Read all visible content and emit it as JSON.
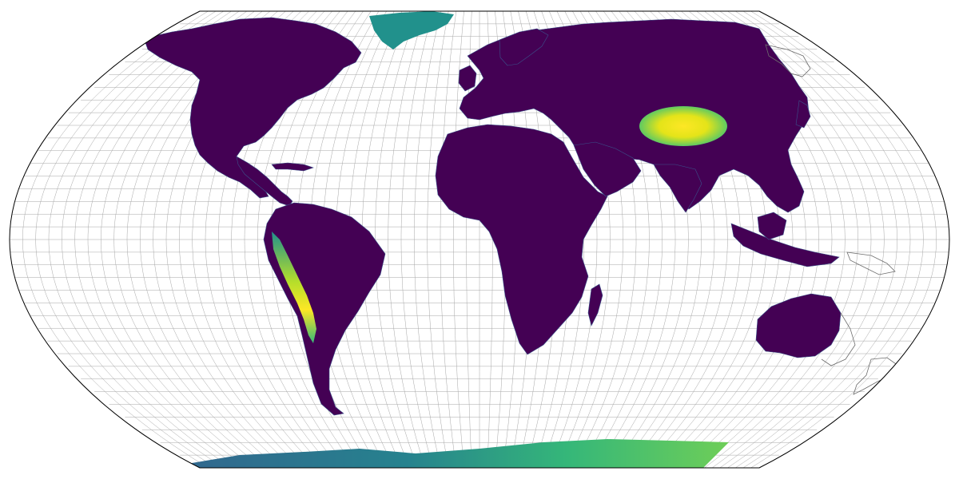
{
  "map": {
    "projection": "Robinson",
    "gridlines": "on",
    "graticule_step_degrees": 5,
    "coloring": "elevation",
    "colormap": "viridis",
    "colors": {
      "background": "#ffffff",
      "ocean": "#ffffff",
      "graticule": "#a6a6a6",
      "boundary": "#000000",
      "coastline_outline": "#6d6d6d",
      "land_low": "#440154",
      "land_mid_low": "#3b528b",
      "land_mid": "#21918c",
      "land_mid_high": "#5ec962",
      "land_high": "#fde725"
    },
    "regions": [
      "north-america",
      "greenland",
      "south-america",
      "europe-asia",
      "africa",
      "arabia",
      "australia",
      "antarctica",
      "tibetan-plateau",
      "andes"
    ]
  }
}
